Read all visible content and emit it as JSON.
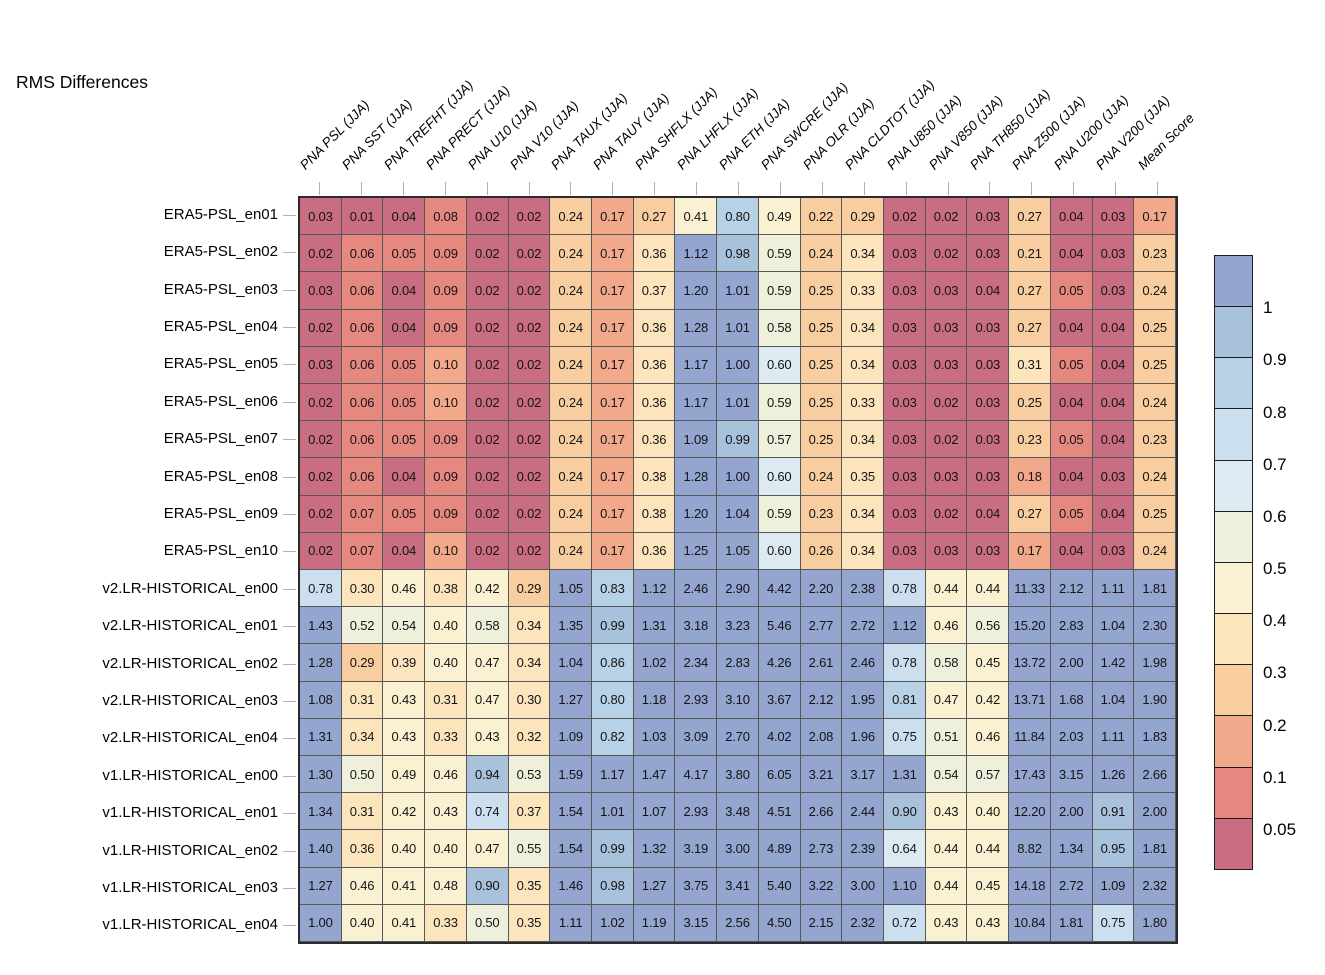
{
  "chart_data": {
    "type": "heatmap",
    "title": "RMS Differences",
    "season_note": "JJA",
    "columns": [
      "PNA PSL (JJA)",
      "PNA SST (JJA)",
      "PNA TREFHT (JJA)",
      "PNA PRECT (JJA)",
      "PNA U10 (JJA)",
      "PNA V10 (JJA)",
      "PNA TAUX (JJA)",
      "PNA TAUY (JJA)",
      "PNA SHFLX (JJA)",
      "PNA LHFLX (JJA)",
      "PNA ETH (JJA)",
      "PNA SWCRE (JJA)",
      "PNA OLR (JJA)",
      "PNA CLDTOT (JJA)",
      "PNA U850 (JJA)",
      "PNA V850 (JJA)",
      "PNA TH850 (JJA)",
      "PNA Z500 (JJA)",
      "PNA U200 (JJA)",
      "PNA V200 (JJA)",
      "Mean Score"
    ],
    "rows": [
      {
        "label": "ERA5-PSL_en01",
        "values": [
          "0.03",
          "0.01",
          "0.04",
          "0.08",
          "0.02",
          "0.02",
          "0.24",
          "0.17",
          "0.27",
          "0.41",
          "0.80",
          "0.49",
          "0.22",
          "0.29",
          "0.02",
          "0.02",
          "0.03",
          "0.27",
          "0.04",
          "0.03",
          "0.17"
        ]
      },
      {
        "label": "ERA5-PSL_en02",
        "values": [
          "0.02",
          "0.06",
          "0.05",
          "0.09",
          "0.02",
          "0.02",
          "0.24",
          "0.17",
          "0.36",
          "1.12",
          "0.98",
          "0.59",
          "0.24",
          "0.34",
          "0.03",
          "0.02",
          "0.03",
          "0.21",
          "0.04",
          "0.03",
          "0.23"
        ]
      },
      {
        "label": "ERA5-PSL_en03",
        "values": [
          "0.03",
          "0.06",
          "0.04",
          "0.09",
          "0.02",
          "0.02",
          "0.24",
          "0.17",
          "0.37",
          "1.20",
          "1.01",
          "0.59",
          "0.25",
          "0.33",
          "0.03",
          "0.03",
          "0.04",
          "0.27",
          "0.05",
          "0.03",
          "0.24"
        ]
      },
      {
        "label": "ERA5-PSL_en04",
        "values": [
          "0.02",
          "0.06",
          "0.04",
          "0.09",
          "0.02",
          "0.02",
          "0.24",
          "0.17",
          "0.36",
          "1.28",
          "1.01",
          "0.58",
          "0.25",
          "0.34",
          "0.03",
          "0.03",
          "0.03",
          "0.27",
          "0.04",
          "0.04",
          "0.25"
        ]
      },
      {
        "label": "ERA5-PSL_en05",
        "values": [
          "0.03",
          "0.06",
          "0.05",
          "0.10",
          "0.02",
          "0.02",
          "0.24",
          "0.17",
          "0.36",
          "1.17",
          "1.00",
          "0.60",
          "0.25",
          "0.34",
          "0.03",
          "0.03",
          "0.03",
          "0.31",
          "0.05",
          "0.04",
          "0.25"
        ]
      },
      {
        "label": "ERA5-PSL_en06",
        "values": [
          "0.02",
          "0.06",
          "0.05",
          "0.10",
          "0.02",
          "0.02",
          "0.24",
          "0.17",
          "0.36",
          "1.17",
          "1.01",
          "0.59",
          "0.25",
          "0.33",
          "0.03",
          "0.02",
          "0.03",
          "0.25",
          "0.04",
          "0.04",
          "0.24"
        ]
      },
      {
        "label": "ERA5-PSL_en07",
        "values": [
          "0.02",
          "0.06",
          "0.05",
          "0.09",
          "0.02",
          "0.02",
          "0.24",
          "0.17",
          "0.36",
          "1.09",
          "0.99",
          "0.57",
          "0.25",
          "0.34",
          "0.03",
          "0.02",
          "0.03",
          "0.23",
          "0.05",
          "0.04",
          "0.23"
        ]
      },
      {
        "label": "ERA5-PSL_en08",
        "values": [
          "0.02",
          "0.06",
          "0.04",
          "0.09",
          "0.02",
          "0.02",
          "0.24",
          "0.17",
          "0.38",
          "1.28",
          "1.00",
          "0.60",
          "0.24",
          "0.35",
          "0.03",
          "0.03",
          "0.03",
          "0.18",
          "0.04",
          "0.03",
          "0.24"
        ]
      },
      {
        "label": "ERA5-PSL_en09",
        "values": [
          "0.02",
          "0.07",
          "0.05",
          "0.09",
          "0.02",
          "0.02",
          "0.24",
          "0.17",
          "0.38",
          "1.20",
          "1.04",
          "0.59",
          "0.23",
          "0.34",
          "0.03",
          "0.02",
          "0.04",
          "0.27",
          "0.05",
          "0.04",
          "0.25"
        ]
      },
      {
        "label": "ERA5-PSL_en10",
        "values": [
          "0.02",
          "0.07",
          "0.04",
          "0.10",
          "0.02",
          "0.02",
          "0.24",
          "0.17",
          "0.36",
          "1.25",
          "1.05",
          "0.60",
          "0.26",
          "0.34",
          "0.03",
          "0.03",
          "0.03",
          "0.17",
          "0.04",
          "0.03",
          "0.24"
        ]
      },
      {
        "label": "v2.LR-HISTORICAL_en00",
        "values": [
          "0.78",
          "0.30",
          "0.46",
          "0.38",
          "0.42",
          "0.29",
          "1.05",
          "0.83",
          "1.12",
          "2.46",
          "2.90",
          "4.42",
          "2.20",
          "2.38",
          "0.78",
          "0.44",
          "0.44",
          "11.33",
          "2.12",
          "1.11",
          "1.81"
        ]
      },
      {
        "label": "v2.LR-HISTORICAL_en01",
        "values": [
          "1.43",
          "0.52",
          "0.54",
          "0.40",
          "0.58",
          "0.34",
          "1.35",
          "0.99",
          "1.31",
          "3.18",
          "3.23",
          "5.46",
          "2.77",
          "2.72",
          "1.12",
          "0.46",
          "0.56",
          "15.20",
          "2.83",
          "1.04",
          "2.30"
        ]
      },
      {
        "label": "v2.LR-HISTORICAL_en02",
        "values": [
          "1.28",
          "0.29",
          "0.39",
          "0.40",
          "0.47",
          "0.34",
          "1.04",
          "0.86",
          "1.02",
          "2.34",
          "2.83",
          "4.26",
          "2.61",
          "2.46",
          "0.78",
          "0.58",
          "0.45",
          "13.72",
          "2.00",
          "1.42",
          "1.98"
        ]
      },
      {
        "label": "v2.LR-HISTORICAL_en03",
        "values": [
          "1.08",
          "0.31",
          "0.43",
          "0.31",
          "0.47",
          "0.30",
          "1.27",
          "0.80",
          "1.18",
          "2.93",
          "3.10",
          "3.67",
          "2.12",
          "1.95",
          "0.81",
          "0.47",
          "0.42",
          "13.71",
          "1.68",
          "1.04",
          "1.90"
        ]
      },
      {
        "label": "v2.LR-HISTORICAL_en04",
        "values": [
          "1.31",
          "0.34",
          "0.43",
          "0.33",
          "0.43",
          "0.32",
          "1.09",
          "0.82",
          "1.03",
          "3.09",
          "2.70",
          "4.02",
          "2.08",
          "1.96",
          "0.75",
          "0.51",
          "0.46",
          "11.84",
          "2.03",
          "1.11",
          "1.83"
        ]
      },
      {
        "label": "v1.LR-HISTORICAL_en00",
        "values": [
          "1.30",
          "0.50",
          "0.49",
          "0.46",
          "0.94",
          "0.53",
          "1.59",
          "1.17",
          "1.47",
          "4.17",
          "3.80",
          "6.05",
          "3.21",
          "3.17",
          "1.31",
          "0.54",
          "0.57",
          "17.43",
          "3.15",
          "1.26",
          "2.66"
        ]
      },
      {
        "label": "v1.LR-HISTORICAL_en01",
        "values": [
          "1.34",
          "0.31",
          "0.42",
          "0.43",
          "0.74",
          "0.37",
          "1.54",
          "1.01",
          "1.07",
          "2.93",
          "3.48",
          "4.51",
          "2.66",
          "2.44",
          "0.90",
          "0.43",
          "0.40",
          "12.20",
          "2.00",
          "0.91",
          "2.00"
        ]
      },
      {
        "label": "v1.LR-HISTORICAL_en02",
        "values": [
          "1.40",
          "0.36",
          "0.40",
          "0.40",
          "0.47",
          "0.55",
          "1.54",
          "0.99",
          "1.32",
          "3.19",
          "3.00",
          "4.89",
          "2.73",
          "2.39",
          "0.64",
          "0.44",
          "0.44",
          "8.82",
          "1.34",
          "0.95",
          "1.81"
        ]
      },
      {
        "label": "v1.LR-HISTORICAL_en03",
        "values": [
          "1.27",
          "0.46",
          "0.41",
          "0.48",
          "0.90",
          "0.35",
          "1.46",
          "0.98",
          "1.27",
          "3.75",
          "3.41",
          "5.40",
          "3.22",
          "3.00",
          "1.10",
          "0.44",
          "0.45",
          "14.18",
          "2.72",
          "1.09",
          "2.32"
        ]
      },
      {
        "label": "v1.LR-HISTORICAL_en04",
        "values": [
          "1.00",
          "0.40",
          "0.41",
          "0.33",
          "0.50",
          "0.35",
          "1.11",
          "1.02",
          "1.19",
          "3.15",
          "2.56",
          "4.50",
          "2.15",
          "2.32",
          "0.72",
          "0.43",
          "0.43",
          "10.84",
          "1.81",
          "0.75",
          "1.80"
        ]
      }
    ],
    "colorbar": {
      "position": "right",
      "tick_labels": [
        "1",
        "0.9",
        "0.8",
        "0.7",
        "0.6",
        "0.5",
        "0.4",
        "0.3",
        "0.2",
        "0.1",
        "0.05"
      ],
      "thresholds_low_to_high": [
        0.05,
        0.1,
        0.2,
        0.3,
        0.4,
        0.5,
        0.6,
        0.7,
        0.8,
        0.9,
        1.0
      ],
      "colors_low_to_high": [
        "#c96d82",
        "#e5887f",
        "#f2a98b",
        "#f8cda0",
        "#fce5bd",
        "#f9f1d2",
        "#eef0dc",
        "#ddeaf2",
        "#cbdfee",
        "#b7d2e7",
        "#a8c2dc",
        "#94a5cf"
      ]
    },
    "grid_on": true
  }
}
